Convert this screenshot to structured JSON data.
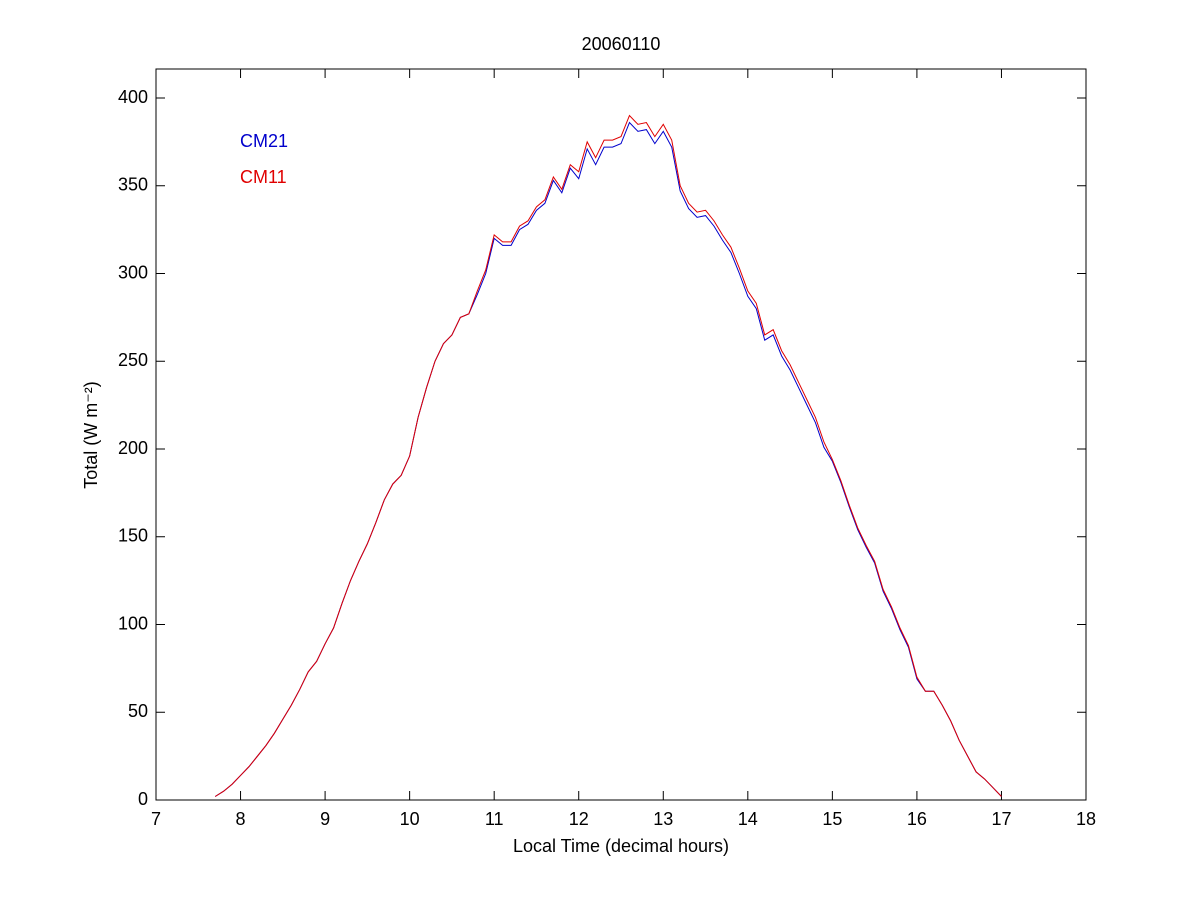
{
  "chart_data": {
    "type": "line",
    "title": "20060110",
    "xlabel": "Local Time (decimal hours)",
    "ylabel": "Total (W m⁻²)",
    "x": [
      7.7,
      7.8,
      7.9,
      8.0,
      8.1,
      8.2,
      8.3,
      8.4,
      8.5,
      8.6,
      8.7,
      8.8,
      8.9,
      9.0,
      9.1,
      9.2,
      9.3,
      9.4,
      9.5,
      9.6,
      9.7,
      9.8,
      9.9,
      10.0,
      10.1,
      10.2,
      10.3,
      10.4,
      10.5,
      10.6,
      10.7,
      10.8,
      10.9,
      11.0,
      11.1,
      11.2,
      11.3,
      11.4,
      11.5,
      11.6,
      11.7,
      11.8,
      11.9,
      12.0,
      12.1,
      12.2,
      12.3,
      12.4,
      12.5,
      12.6,
      12.7,
      12.8,
      12.9,
      13.0,
      13.1,
      13.2,
      13.3,
      13.4,
      13.5,
      13.6,
      13.7,
      13.8,
      13.9,
      14.0,
      14.1,
      14.2,
      14.3,
      14.4,
      14.5,
      14.6,
      14.7,
      14.8,
      14.9,
      15.0,
      15.1,
      15.2,
      15.3,
      15.4,
      15.5,
      15.6,
      15.7,
      15.8,
      15.9,
      16.0,
      16.1,
      16.2,
      16.3,
      16.4,
      16.5,
      16.6,
      16.7,
      16.8,
      16.9,
      17.0
    ],
    "series": [
      {
        "name": "CM21",
        "color": "#0000cc",
        "values": [
          2,
          5,
          9,
          14,
          19,
          25,
          31,
          38,
          46,
          54,
          63,
          73,
          79,
          89,
          98,
          112,
          125,
          136,
          146,
          158,
          171,
          180,
          185,
          196,
          218,
          235,
          250,
          260,
          265,
          275,
          277,
          288,
          300,
          320,
          316,
          316,
          325,
          328,
          336,
          340,
          353,
          346,
          360,
          354,
          371,
          362,
          372,
          372,
          374,
          386,
          381,
          382,
          374,
          381,
          372,
          347,
          337,
          332,
          333,
          327,
          319,
          312,
          300,
          287,
          280,
          262,
          265,
          253,
          245,
          235,
          225,
          215,
          201,
          193,
          181,
          167,
          154,
          144,
          135,
          119,
          109,
          97,
          87,
          69,
          62,
          62,
          54,
          45,
          34,
          25,
          16,
          12,
          7,
          2
        ]
      },
      {
        "name": "CM11",
        "color": "#e00000",
        "values": [
          2,
          5,
          9,
          14,
          19,
          25,
          31,
          38,
          46,
          54,
          63,
          73,
          79,
          89,
          98,
          112,
          125,
          136,
          146,
          158,
          171,
          180,
          185,
          196,
          218,
          235,
          250,
          260,
          265,
          275,
          277,
          290,
          302,
          322,
          318,
          318,
          327,
          330,
          338,
          342,
          355,
          348,
          362,
          358,
          375,
          366,
          376,
          376,
          378,
          390,
          385,
          386,
          378,
          385,
          376,
          350,
          340,
          335,
          336,
          330,
          322,
          315,
          303,
          290,
          283,
          265,
          268,
          256,
          248,
          238,
          228,
          218,
          204,
          194,
          182,
          168,
          155,
          145,
          136,
          120,
          110,
          98,
          88,
          70,
          62,
          62,
          54,
          45,
          34,
          25,
          16,
          12,
          7,
          2
        ]
      }
    ],
    "xlim": [
      7,
      18
    ],
    "xticks": [
      7,
      8,
      9,
      10,
      11,
      12,
      13,
      14,
      15,
      16,
      17,
      18
    ],
    "ylim": [
      0,
      400
    ],
    "yticks": [
      0,
      50,
      100,
      150,
      200,
      250,
      300,
      350,
      400
    ],
    "grid": false,
    "legend": "upper left"
  }
}
